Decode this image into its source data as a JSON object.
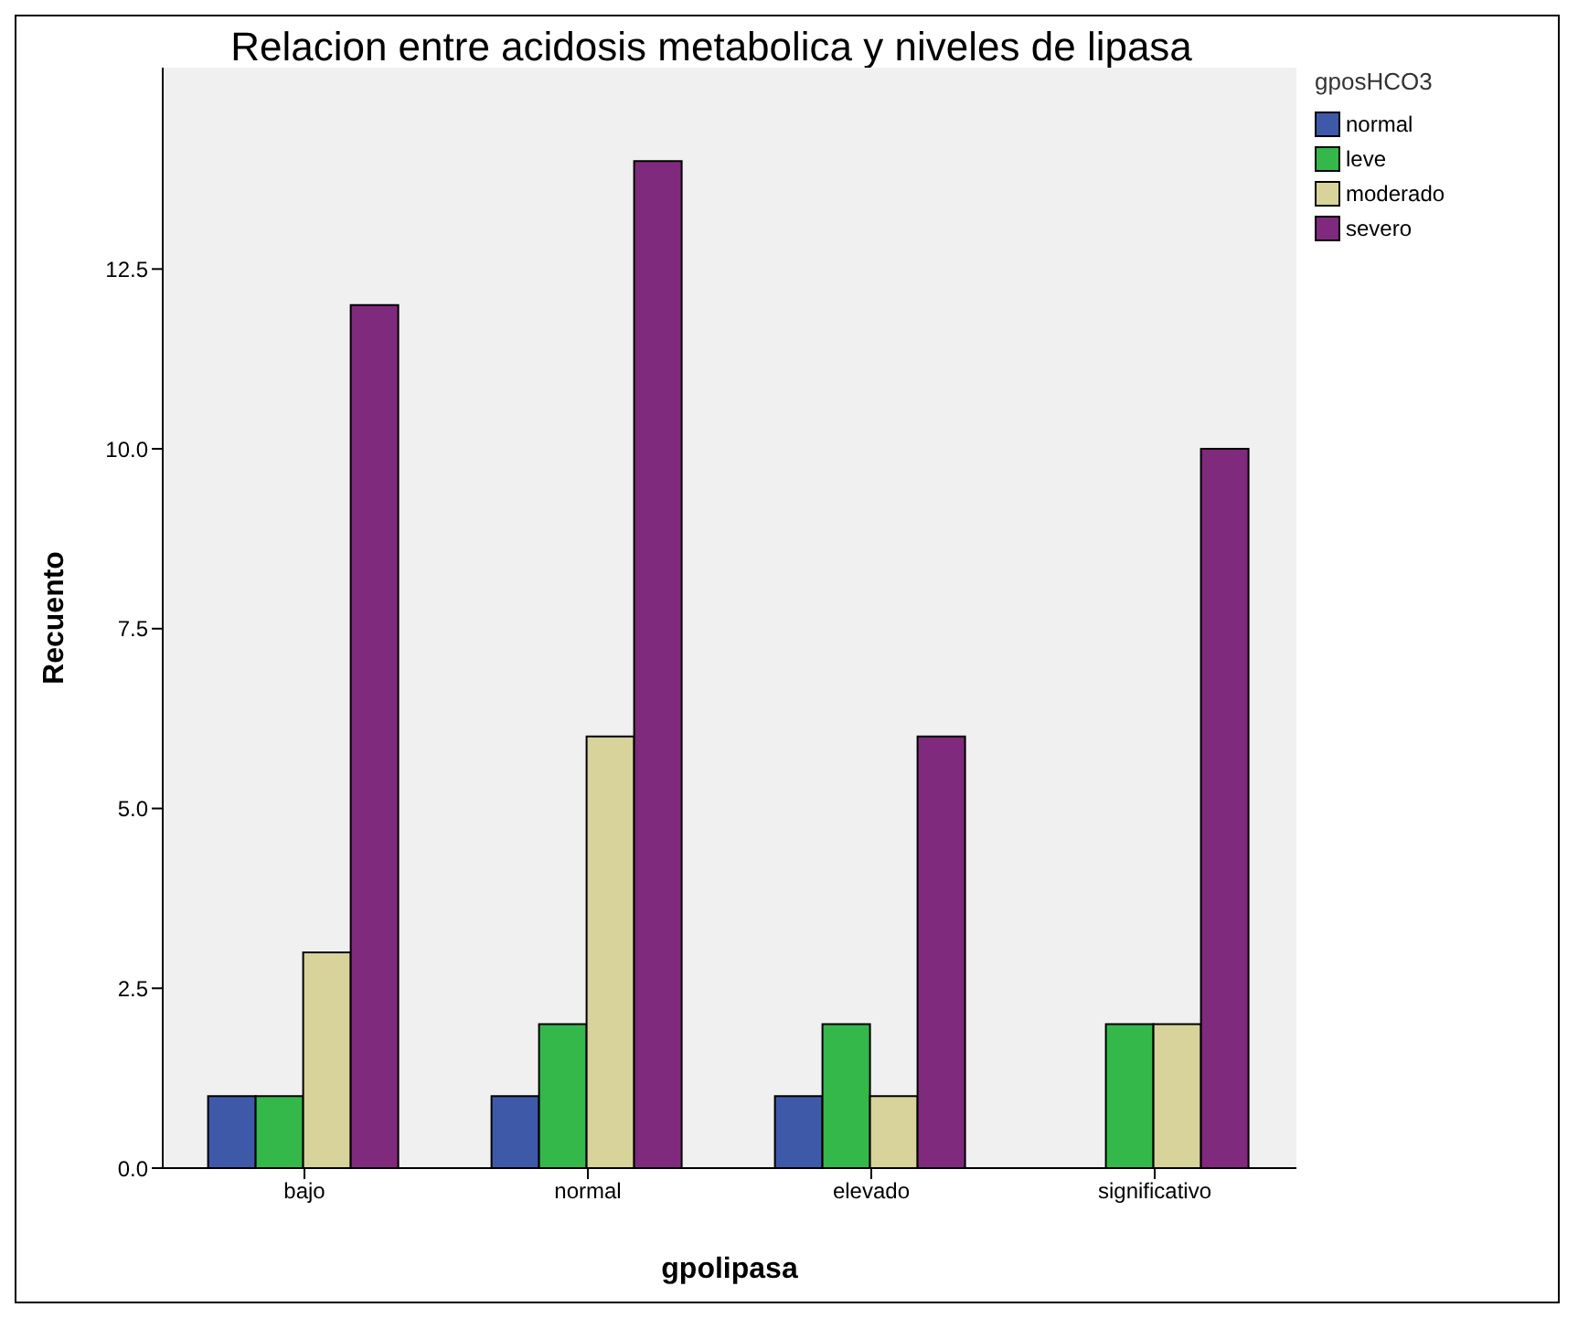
{
  "chart_data": {
    "type": "bar",
    "title": "Relacion entre acidosis metabolica y niveles de lipasa",
    "xlabel": "gpolipasa",
    "ylabel": "Recuento",
    "legend_title": "gposHCO3",
    "categories": [
      "bajo",
      "normal",
      "elevado",
      "significativo"
    ],
    "series": [
      {
        "name": "normal",
        "color": "#3f59a9",
        "values": [
          1,
          1,
          1,
          0
        ]
      },
      {
        "name": "leve",
        "color": "#35b84a",
        "values": [
          1,
          2,
          2,
          2
        ]
      },
      {
        "name": "moderado",
        "color": "#d7d39b",
        "values": [
          3,
          6,
          1,
          2
        ]
      },
      {
        "name": "severo",
        "color": "#7f2a7c",
        "values": [
          12,
          14,
          6,
          10
        ]
      }
    ],
    "ylim": [
      0,
      15.3
    ],
    "yticks": [
      {
        "value": 0,
        "label": "0.0"
      },
      {
        "value": 2.5,
        "label": "2.5"
      },
      {
        "value": 5,
        "label": "5.0"
      },
      {
        "value": 7.5,
        "label": "7.5"
      },
      {
        "value": 10,
        "label": "10.0"
      },
      {
        "value": 12.5,
        "label": "12.5"
      }
    ],
    "grid": false,
    "legend": "top right"
  }
}
